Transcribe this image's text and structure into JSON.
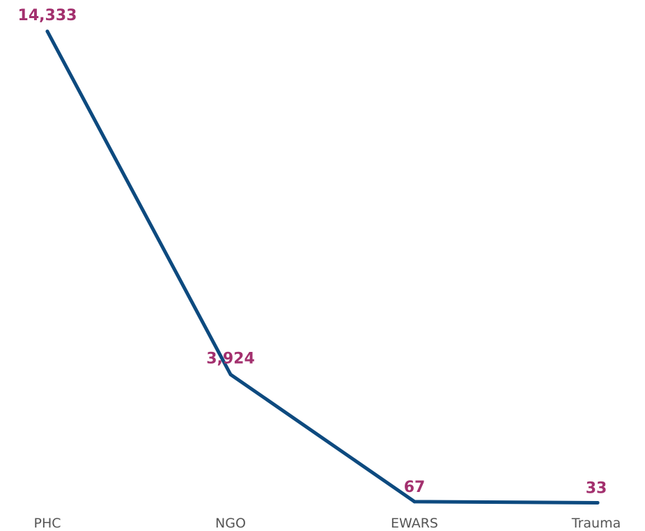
{
  "colors": {
    "line": "#0d4a7f",
    "label": "#a3306e",
    "tick": "#555555"
  },
  "chart_data": {
    "type": "line",
    "categories": [
      "PHC",
      "NGO",
      "EWARS",
      "Trauma"
    ],
    "series": [
      {
        "values": [
          14333,
          3924,
          67,
          33
        ],
        "labels": [
          "14,333",
          "3,924",
          "67",
          "33"
        ]
      }
    ],
    "ylim": [
      0,
      14333
    ],
    "grid": false,
    "legend": "none"
  }
}
